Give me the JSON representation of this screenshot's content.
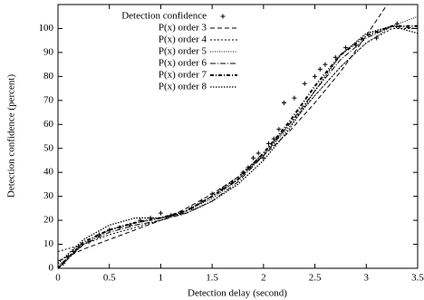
{
  "chart_data": {
    "type": "line",
    "xlabel": "Detection delay (second)",
    "ylabel": "Detection confidence (percent)",
    "xlim": [
      0,
      3.5
    ],
    "ylim": [
      0,
      110
    ],
    "xticks": [
      0,
      0.5,
      1,
      1.5,
      2,
      2.5,
      3,
      3.5
    ],
    "yticks": [
      0,
      10,
      20,
      30,
      40,
      50,
      60,
      70,
      80,
      90,
      100
    ],
    "legend": "top-left",
    "series": [
      {
        "name": "Detection confidence",
        "mode": "points",
        "color": "#000000",
        "x": [
          0,
          0.05,
          0.1,
          0.15,
          0.2,
          0.3,
          0.4,
          0.5,
          0.6,
          0.7,
          0.8,
          0.9,
          1.0,
          1.1,
          1.2,
          1.3,
          1.4,
          1.5,
          1.6,
          1.7,
          1.8,
          1.85,
          1.9,
          1.95,
          2.0,
          2.05,
          2.1,
          2.15,
          2.2,
          2.3,
          2.4,
          2.5,
          2.55,
          2.6,
          2.7,
          2.8,
          2.9,
          3.1,
          3.3,
          3.5
        ],
        "values": [
          0,
          2,
          5,
          7,
          9,
          11,
          14,
          16,
          17,
          18,
          20,
          21,
          23,
          22,
          23,
          25,
          28,
          31,
          33,
          36,
          40,
          42,
          46,
          48,
          46,
          52,
          54,
          58,
          69,
          71,
          77,
          80,
          83,
          85,
          88,
          92,
          93,
          96,
          102,
          100
        ]
      },
      {
        "name": "P(x) order 3",
        "mode": "line",
        "color": "#000000",
        "dash": "5,3",
        "x": [
          0,
          0.25,
          0.5,
          0.75,
          1,
          1.25,
          1.5,
          1.75,
          2,
          2.25,
          2.5,
          2.75,
          3,
          3.25,
          3.5
        ],
        "values": [
          3,
          8,
          12,
          16,
          20,
          25,
          31,
          38,
          47,
          57,
          69,
          82,
          97,
          113,
          131
        ]
      },
      {
        "name": "P(x) order 4",
        "mode": "line",
        "color": "#000000",
        "dash": "2,2",
        "x": [
          0,
          0.25,
          0.5,
          0.75,
          1,
          1.25,
          1.5,
          1.75,
          2,
          2.25,
          2.5,
          2.75,
          3,
          3.25,
          3.5
        ],
        "values": [
          7,
          10,
          14,
          17,
          20,
          24,
          30,
          38,
          48,
          60,
          72,
          84,
          94,
          100,
          100
        ]
      },
      {
        "name": "P(x) order 5",
        "mode": "line",
        "color": "#000000",
        "dash": "1,1.5",
        "x": [
          0,
          0.25,
          0.5,
          0.75,
          1,
          1.25,
          1.5,
          1.75,
          2,
          2.25,
          2.5,
          2.75,
          3,
          3.25,
          3.5
        ],
        "values": [
          1,
          10,
          16,
          19,
          21,
          24,
          29,
          37,
          47,
          59,
          72,
          84,
          94,
          101,
          105
        ]
      },
      {
        "name": "P(x) order 6",
        "mode": "line",
        "color": "#000000",
        "dash": "6,2,1,2",
        "x": [
          0,
          0.25,
          0.5,
          0.75,
          1,
          1.25,
          1.5,
          1.75,
          2,
          2.25,
          2.5,
          2.75,
          3,
          3.25,
          3.5
        ],
        "values": [
          0,
          10,
          15,
          18,
          20,
          23,
          28,
          36,
          47,
          60,
          74,
          87,
          96,
          101,
          100
        ]
      },
      {
        "name": "P(x) order 7",
        "mode": "line",
        "color": "#000000",
        "dash": "4,2,1,2",
        "width": 2,
        "x": [
          0,
          0.25,
          0.5,
          0.75,
          1,
          1.25,
          1.5,
          1.75,
          2,
          2.25,
          2.5,
          2.75,
          3,
          3.25,
          3.5
        ],
        "values": [
          0,
          11,
          16,
          19,
          21,
          24,
          30,
          37,
          48,
          61,
          76,
          89,
          97,
          101,
          101
        ]
      },
      {
        "name": "P(x) order 8",
        "mode": "line",
        "color": "#000000",
        "dash": "1.5,1.5",
        "width": 1.3,
        "x": [
          0,
          0.25,
          0.5,
          0.75,
          1,
          1.25,
          1.5,
          1.75,
          2,
          2.25,
          2.5,
          2.75,
          3,
          3.25,
          3.5
        ],
        "values": [
          2,
          12,
          18,
          21,
          21,
          23,
          28,
          35,
          45,
          58,
          74,
          89,
          98,
          101,
          98
        ]
      }
    ]
  }
}
